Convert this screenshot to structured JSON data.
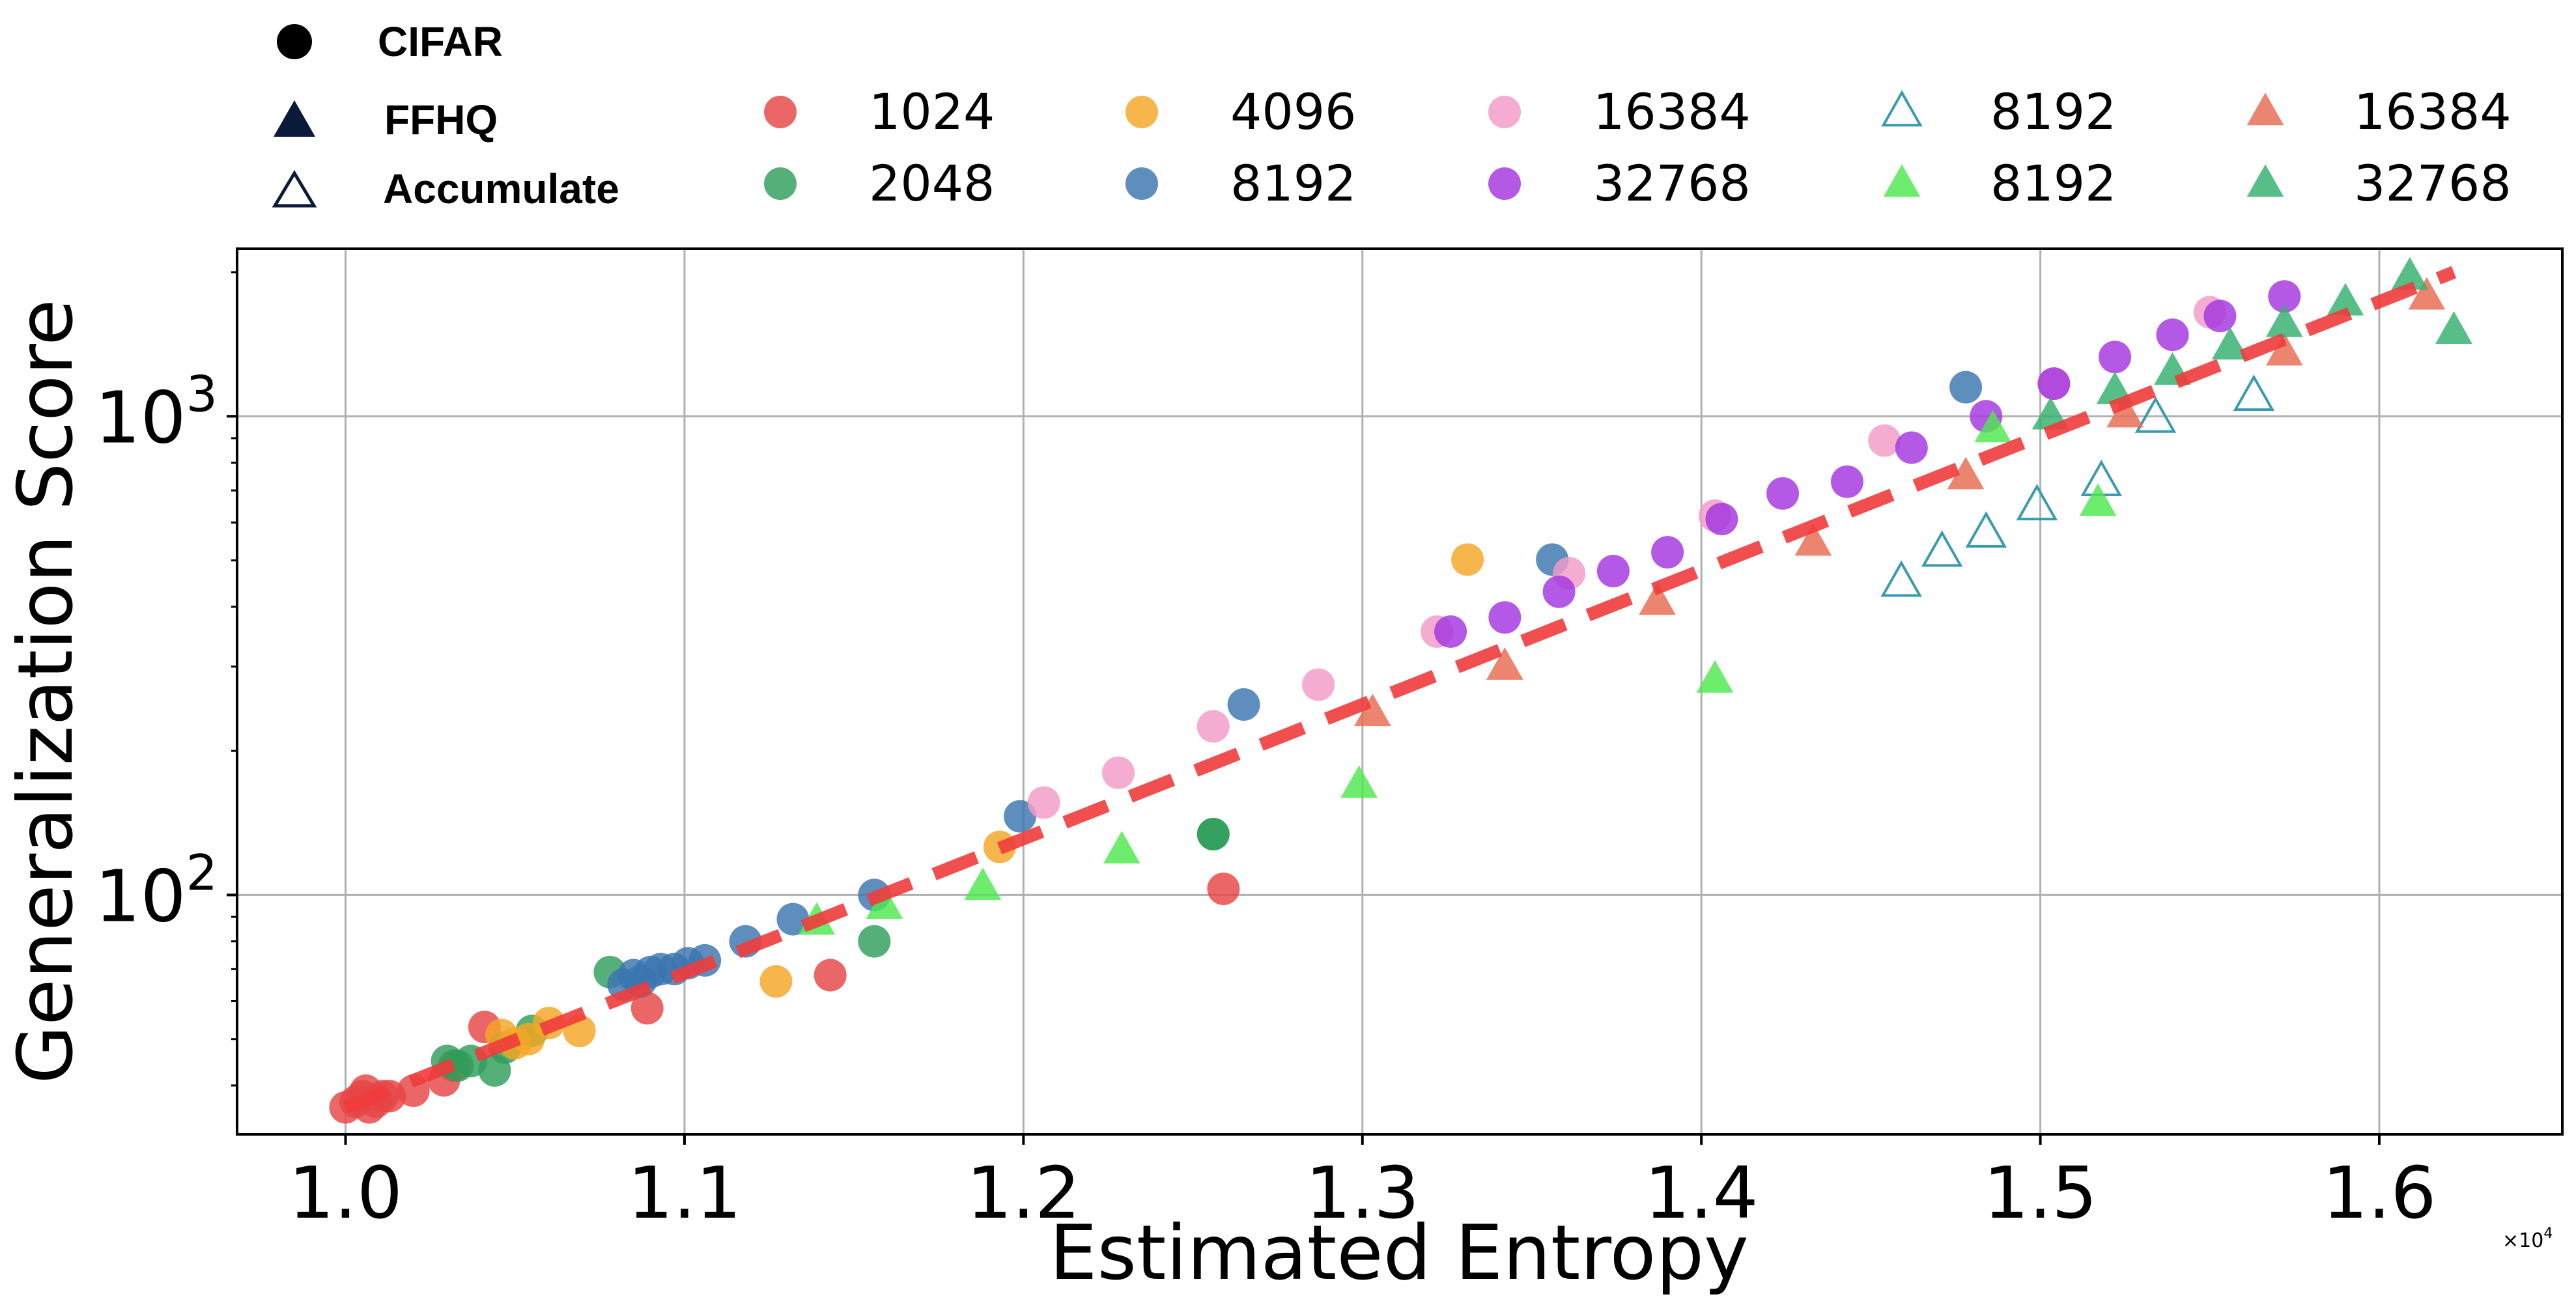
{
  "chart_data": {
    "type": "scatter",
    "title": "",
    "xlabel": "Estimated Entropy",
    "ylabel": "Generalization Score",
    "x_multiplier_label": "×10",
    "x_multiplier_exp": "4",
    "xlim": [
      0.968,
      1.654
    ],
    "ylim_log10": [
      1.5,
      3.35
    ],
    "y_scale": "log",
    "grid": true,
    "x_ticks": [
      1.0,
      1.1,
      1.2,
      1.3,
      1.4,
      1.5,
      1.6
    ],
    "x_tick_labels": [
      "1.0",
      "1.1",
      "1.2",
      "1.3",
      "1.4",
      "1.5",
      "1.6"
    ],
    "y_ticks": [
      100,
      1000
    ],
    "y_tick_base": "10",
    "y_tick_exps": [
      "2",
      "3"
    ],
    "marker_legend": [
      {
        "label": "CIFAR",
        "marker": "circle"
      },
      {
        "label": "FFHQ",
        "marker": "triangle"
      },
      {
        "label": "Accumulate",
        "marker": "triangle-open"
      }
    ],
    "series": [
      {
        "name": "1024",
        "dataset": "CIFAR",
        "marker": "circle",
        "color": "#e64545",
        "points": [
          [
            1.0,
            36
          ],
          [
            1.003,
            37
          ],
          [
            1.005,
            38
          ],
          [
            1.007,
            36
          ],
          [
            1.006,
            39
          ],
          [
            1.009,
            37
          ],
          [
            1.011,
            38
          ],
          [
            1.013,
            38
          ],
          [
            1.02,
            39
          ],
          [
            1.029,
            41
          ],
          [
            1.032,
            44
          ],
          [
            1.041,
            53
          ],
          [
            1.089,
            58
          ],
          [
            1.143,
            68
          ],
          [
            1.259,
            103
          ]
        ]
      },
      {
        "name": "2048",
        "dataset": "CIFAR",
        "marker": "circle",
        "color": "#2e9e5a",
        "points": [
          [
            1.03,
            45
          ],
          [
            1.033,
            44
          ],
          [
            1.037,
            45
          ],
          [
            1.044,
            43
          ],
          [
            1.047,
            48
          ],
          [
            1.055,
            52
          ],
          [
            1.078,
            69
          ],
          [
            1.156,
            80
          ],
          [
            1.256,
            134
          ],
          [
            1.256,
            134
          ]
        ]
      },
      {
        "name": "4096",
        "dataset": "CIFAR",
        "marker": "circle",
        "color": "#f5a623",
        "points": [
          [
            1.046,
            51
          ],
          [
            1.05,
            49
          ],
          [
            1.054,
            50
          ],
          [
            1.06,
            54
          ],
          [
            1.069,
            52
          ],
          [
            1.127,
            66
          ],
          [
            1.193,
            126
          ],
          [
            1.331,
            502
          ]
        ]
      },
      {
        "name": "8192",
        "dataset": "CIFAR",
        "marker": "circle",
        "color": "#3a75b0",
        "points": [
          [
            1.082,
            65
          ],
          [
            1.085,
            68
          ],
          [
            1.087,
            66
          ],
          [
            1.09,
            69
          ],
          [
            1.093,
            70
          ],
          [
            1.097,
            70
          ],
          [
            1.101,
            72
          ],
          [
            1.106,
            73
          ],
          [
            1.118,
            80
          ],
          [
            1.132,
            89
          ],
          [
            1.156,
            100
          ],
          [
            1.199,
            146
          ],
          [
            1.265,
            250
          ],
          [
            1.356,
            502
          ],
          [
            1.478,
            1150
          ]
        ]
      },
      {
        "name": "16384",
        "dataset": "CIFAR",
        "marker": "circle",
        "color": "#f29bc7",
        "points": [
          [
            1.206,
            156
          ],
          [
            1.228,
            180
          ],
          [
            1.256,
            225
          ],
          [
            1.287,
            275
          ],
          [
            1.322,
            355
          ],
          [
            1.361,
            470
          ],
          [
            1.404,
            620
          ],
          [
            1.454,
            890
          ],
          [
            1.504,
            1170
          ],
          [
            1.55,
            1650
          ]
        ]
      },
      {
        "name": "32768",
        "dataset": "CIFAR",
        "marker": "circle",
        "color": "#a335e0",
        "points": [
          [
            1.326,
            355
          ],
          [
            1.342,
            380
          ],
          [
            1.358,
            430
          ],
          [
            1.374,
            475
          ],
          [
            1.39,
            520
          ],
          [
            1.406,
            610
          ],
          [
            1.424,
            690
          ],
          [
            1.443,
            730
          ],
          [
            1.462,
            860
          ],
          [
            1.484,
            1000
          ],
          [
            1.504,
            1170
          ],
          [
            1.522,
            1330
          ],
          [
            1.539,
            1480
          ],
          [
            1.553,
            1620
          ],
          [
            1.572,
            1780
          ]
        ]
      },
      {
        "name": "8192",
        "dataset": "Accumulate",
        "marker": "triangle-open",
        "color": "#3a9ab0",
        "points": [
          [
            1.459,
            450
          ],
          [
            1.471,
            520
          ],
          [
            1.484,
            570
          ],
          [
            1.499,
            650
          ],
          [
            1.518,
            730
          ],
          [
            1.534,
            990
          ],
          [
            1.563,
            1100
          ]
        ]
      },
      {
        "name": "8192",
        "dataset": "FFHQ",
        "marker": "triangle",
        "color": "#4ee84e",
        "points": [
          [
            1.139,
            88
          ],
          [
            1.159,
            95
          ],
          [
            1.188,
            104
          ],
          [
            1.229,
            124
          ],
          [
            1.299,
            170
          ],
          [
            1.404,
            282
          ],
          [
            1.486,
            940
          ],
          [
            1.517,
            660
          ]
        ]
      },
      {
        "name": "16384",
        "dataset": "FFHQ",
        "marker": "triangle",
        "color": "#e86a50",
        "points": [
          [
            1.303,
            240
          ],
          [
            1.342,
            300
          ],
          [
            1.387,
            410
          ],
          [
            1.433,
            545
          ],
          [
            1.478,
            750
          ],
          [
            1.525,
            1010
          ],
          [
            1.572,
            1360
          ],
          [
            1.614,
            1780
          ]
        ]
      },
      {
        "name": "32768",
        "dataset": "FFHQ",
        "marker": "triangle",
        "color": "#33b06e",
        "points": [
          [
            1.503,
            1000
          ],
          [
            1.522,
            1130
          ],
          [
            1.539,
            1240
          ],
          [
            1.556,
            1400
          ],
          [
            1.572,
            1560
          ],
          [
            1.59,
            1730
          ],
          [
            1.609,
            1960
          ],
          [
            1.622,
            1510
          ]
        ]
      }
    ],
    "fit_line": {
      "style": "dashed",
      "color": "#f03c3c",
      "points": [
        [
          1.0,
          36
        ],
        [
          1.622,
          2000
        ]
      ]
    }
  }
}
